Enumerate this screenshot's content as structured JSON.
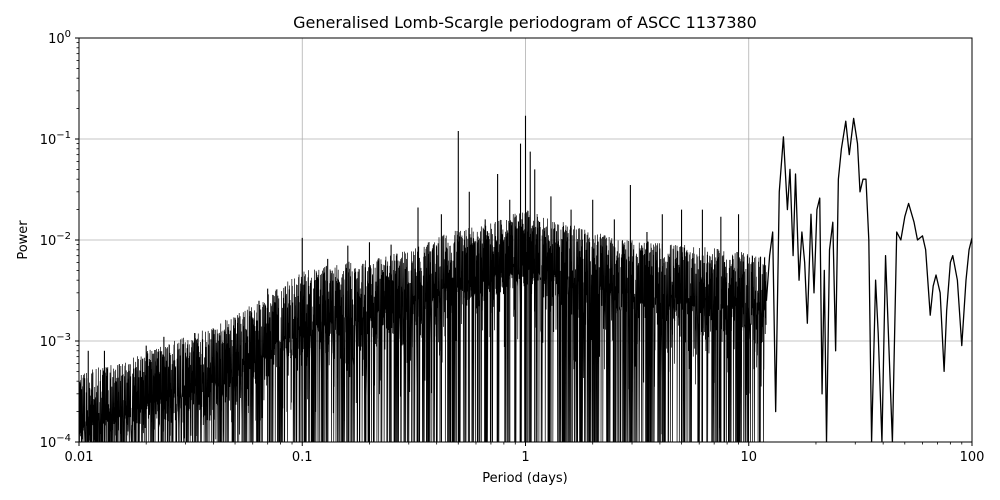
{
  "chart_data": {
    "type": "line",
    "title": "Generalised Lomb-Scargle periodogram of ASCC 1137380",
    "xlabel": "Period (days)",
    "ylabel": "Power",
    "xscale": "log",
    "yscale": "log",
    "xlim": [
      0.01,
      100
    ],
    "ylim": [
      0.0001,
      1
    ],
    "grid": true,
    "x_ticks": [
      {
        "value": 0.01,
        "label": "0.01"
      },
      {
        "value": 0.1,
        "label": "0.1"
      },
      {
        "value": 1,
        "label": "1"
      },
      {
        "value": 10,
        "label": "10"
      },
      {
        "value": 100,
        "label": "100"
      }
    ],
    "y_ticks": [
      {
        "value": 0.0001,
        "base": "10",
        "exp": "−4"
      },
      {
        "value": 0.001,
        "base": "10",
        "exp": "−3"
      },
      {
        "value": 0.01,
        "base": "10",
        "exp": "−2"
      },
      {
        "value": 0.1,
        "base": "10",
        "exp": "−1"
      },
      {
        "value": 1,
        "base": "10",
        "exp": "0"
      }
    ],
    "series": [
      {
        "color": "#000000",
        "noise_envelope": [
          [
            0.01,
            0.0005
          ],
          [
            0.015,
            0.0006
          ],
          [
            0.02,
            0.0008
          ],
          [
            0.03,
            0.0011
          ],
          [
            0.05,
            0.0018
          ],
          [
            0.08,
            0.0035
          ],
          [
            0.1,
            0.005
          ],
          [
            0.15,
            0.006
          ],
          [
            0.2,
            0.0065
          ],
          [
            0.3,
            0.008
          ],
          [
            0.5,
            0.013
          ],
          [
            0.7,
            0.015
          ],
          [
            1,
            0.02
          ],
          [
            1.5,
            0.015
          ],
          [
            2,
            0.012
          ],
          [
            3,
            0.01
          ],
          [
            5,
            0.009
          ],
          [
            8,
            0.008
          ],
          [
            12,
            0.007
          ]
        ],
        "peaks": [
          [
            0.011,
            0.0008
          ],
          [
            0.013,
            0.0008
          ],
          [
            0.02,
            0.0009
          ],
          [
            0.024,
            0.0011
          ],
          [
            0.033,
            0.0012
          ],
          [
            0.05,
            0.0017
          ],
          [
            0.064,
            0.0025
          ],
          [
            0.07,
            0.0033
          ],
          [
            0.1,
            0.0105
          ],
          [
            0.13,
            0.0065
          ],
          [
            0.16,
            0.0088
          ],
          [
            0.2,
            0.0095
          ],
          [
            0.25,
            0.009
          ],
          [
            0.33,
            0.021
          ],
          [
            0.42,
            0.018
          ],
          [
            0.5,
            0.12
          ],
          [
            0.56,
            0.03
          ],
          [
            0.66,
            0.016
          ],
          [
            0.75,
            0.045
          ],
          [
            0.85,
            0.025
          ],
          [
            0.9,
            0.017
          ],
          [
            0.95,
            0.09
          ],
          [
            1.0,
            0.17
          ],
          [
            1.05,
            0.075
          ],
          [
            1.1,
            0.05
          ],
          [
            1.3,
            0.027
          ],
          [
            1.6,
            0.02
          ],
          [
            2.0,
            0.025
          ],
          [
            2.5,
            0.016
          ],
          [
            2.95,
            0.035
          ],
          [
            3.5,
            0.012
          ],
          [
            4.1,
            0.018
          ],
          [
            5.0,
            0.02
          ],
          [
            6.2,
            0.02
          ],
          [
            7.5,
            0.017
          ],
          [
            9.0,
            0.018
          ]
        ],
        "smooth_curve": [
          [
            12.0,
            0.0025
          ],
          [
            12.4,
            0.007
          ],
          [
            12.8,
            0.012
          ],
          [
            13.2,
            0.0002
          ],
          [
            13.7,
            0.03
          ],
          [
            14.3,
            0.105
          ],
          [
            14.9,
            0.02
          ],
          [
            15.3,
            0.05
          ],
          [
            15.8,
            0.007
          ],
          [
            16.2,
            0.045
          ],
          [
            16.8,
            0.004
          ],
          [
            17.3,
            0.012
          ],
          [
            17.8,
            0.006
          ],
          [
            18.3,
            0.0015
          ],
          [
            19.0,
            0.018
          ],
          [
            19.6,
            0.003
          ],
          [
            20.2,
            0.02
          ],
          [
            20.8,
            0.026
          ],
          [
            21.3,
            0.0003
          ],
          [
            21.8,
            0.005
          ],
          [
            22.3,
            0.0001
          ],
          [
            23.0,
            0.008
          ],
          [
            23.8,
            0.015
          ],
          [
            24.5,
            0.0008
          ],
          [
            25.2,
            0.04
          ],
          [
            26.0,
            0.08
          ],
          [
            27.2,
            0.15
          ],
          [
            28.2,
            0.07
          ],
          [
            29.5,
            0.16
          ],
          [
            30.7,
            0.09
          ],
          [
            31.5,
            0.03
          ],
          [
            32.5,
            0.04
          ],
          [
            33.5,
            0.04
          ],
          [
            34.5,
            0.01
          ],
          [
            35.5,
            0.0001
          ],
          [
            37.0,
            0.004
          ],
          [
            38.0,
            0.0012
          ],
          [
            39.5,
            0.0001
          ],
          [
            41.0,
            0.007
          ],
          [
            42.5,
            0.0008
          ],
          [
            44.0,
            0.0001
          ],
          [
            46.0,
            0.012
          ],
          [
            48.0,
            0.01
          ],
          [
            50.0,
            0.017
          ],
          [
            52.0,
            0.023
          ],
          [
            55.0,
            0.015
          ],
          [
            57.0,
            0.01
          ],
          [
            60.0,
            0.011
          ],
          [
            62.0,
            0.008
          ],
          [
            65.0,
            0.0018
          ],
          [
            67.0,
            0.0035
          ],
          [
            69.0,
            0.0045
          ],
          [
            72.0,
            0.003
          ],
          [
            75.0,
            0.0005
          ],
          [
            77.0,
            0.002
          ],
          [
            80.0,
            0.006
          ],
          [
            82.0,
            0.007
          ],
          [
            86.0,
            0.004
          ],
          [
            90.0,
            0.0009
          ],
          [
            94.0,
            0.004
          ],
          [
            97.0,
            0.008
          ],
          [
            100.0,
            0.0105
          ]
        ]
      }
    ]
  }
}
